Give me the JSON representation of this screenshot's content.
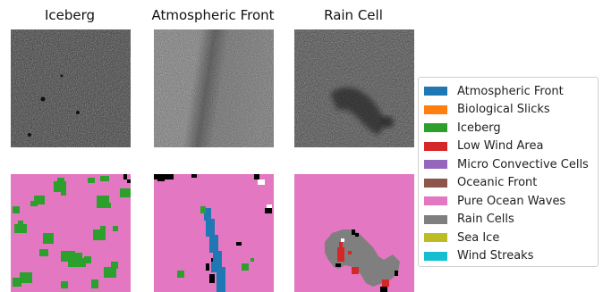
{
  "columns": [
    {
      "title": "Iceberg"
    },
    {
      "title": "Atmospheric Front"
    },
    {
      "title": "Rain Cell"
    }
  ],
  "legend": {
    "items": [
      {
        "label": "Atmospheric Front",
        "color": "#1f77b4"
      },
      {
        "label": "Biological Slicks",
        "color": "#ff7f0e"
      },
      {
        "label": "Iceberg",
        "color": "#2ca02c"
      },
      {
        "label": "Low Wind Area",
        "color": "#d62728"
      },
      {
        "label": "Micro Convective Cells",
        "color": "#9467bd"
      },
      {
        "label": "Oceanic Front",
        "color": "#8c564b"
      },
      {
        "label": "Pure Ocean Waves",
        "color": "#e377c2"
      },
      {
        "label": "Rain Cells",
        "color": "#7f7f7f"
      },
      {
        "label": "Sea Ice",
        "color": "#bcbd22"
      },
      {
        "label": "Wind Streaks",
        "color": "#17becf"
      }
    ]
  }
}
